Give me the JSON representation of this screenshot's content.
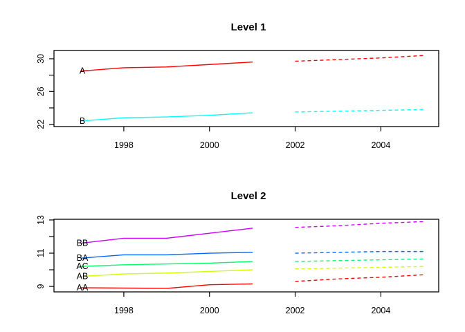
{
  "page": {
    "background_color": "#ffffff",
    "description": "Two stacked time-series line charts with solid history and dashed forecasts"
  },
  "chart_data": [
    {
      "type": "line",
      "title": "Level 1",
      "xlabel": "",
      "ylabel": "",
      "grid": false,
      "legend_position": "inline-labels-at-series-start",
      "x_actual": [
        1997,
        1998,
        1999,
        2000,
        2001
      ],
      "x_forecast": [
        2002,
        2003,
        2004,
        2005
      ],
      "xlim": [
        1996.37,
        2005.35
      ],
      "ylim": [
        21.72,
        31.01
      ],
      "xticks": [
        1998,
        2000,
        2002,
        2004
      ],
      "xtick_labels": [
        "1998",
        "2000",
        "2002",
        "2004"
      ],
      "yticks": [
        22,
        24,
        26,
        28,
        30
      ],
      "ytick_labels": [
        "22",
        "",
        "26",
        "",
        "30"
      ],
      "series": [
        {
          "name": "A",
          "color": "#FF0000",
          "actual": [
            28.5,
            28.9,
            29.0,
            29.3,
            29.6
          ],
          "forecast": [
            29.7,
            29.9,
            30.1,
            30.4
          ],
          "actual_style": "solid",
          "forecast_style": "dashed"
        },
        {
          "name": "B",
          "color": "#00FFFF",
          "actual": [
            22.4,
            22.8,
            22.9,
            23.1,
            23.4
          ],
          "forecast": [
            23.5,
            23.6,
            23.7,
            23.8
          ],
          "actual_style": "solid",
          "forecast_style": "dashed"
        }
      ]
    },
    {
      "type": "line",
      "title": "Level 2",
      "xlabel": "",
      "ylabel": "",
      "grid": false,
      "legend_position": "inline-labels-at-series-start",
      "x_actual": [
        1997,
        1998,
        1999,
        2000,
        2001
      ],
      "x_forecast": [
        2002,
        2003,
        2004,
        2005
      ],
      "xlim": [
        1996.37,
        2005.35
      ],
      "ylim": [
        8.67,
        13.04
      ],
      "xticks": [
        1998,
        2000,
        2002,
        2004
      ],
      "xtick_labels": [
        "1998",
        "2000",
        "2002",
        "2004"
      ],
      "yticks": [
        9,
        10,
        11,
        12,
        13
      ],
      "ytick_labels": [
        "9",
        "",
        "11",
        "",
        "13"
      ],
      "series": [
        {
          "name": "BB",
          "color": "#CC00FF",
          "actual": [
            11.6,
            11.9,
            11.9,
            12.2,
            12.5
          ],
          "forecast": [
            12.55,
            12.65,
            12.8,
            12.9
          ],
          "actual_style": "solid",
          "forecast_style": "dashed"
        },
        {
          "name": "BA",
          "color": "#0066FF",
          "actual": [
            10.7,
            10.9,
            10.9,
            11.0,
            11.05
          ],
          "forecast": [
            11.0,
            11.05,
            11.1,
            11.1
          ],
          "actual_style": "solid",
          "forecast_style": "dashed"
        },
        {
          "name": "AC",
          "color": "#00FF66",
          "actual": [
            10.2,
            10.3,
            10.35,
            10.4,
            10.5
          ],
          "forecast": [
            10.5,
            10.55,
            10.6,
            10.65
          ],
          "actual_style": "solid",
          "forecast_style": "dashed"
        },
        {
          "name": "AB",
          "color": "#CCFF00",
          "actual": [
            9.6,
            9.75,
            9.8,
            9.9,
            10.0
          ],
          "forecast": [
            10.05,
            10.1,
            10.15,
            10.2
          ],
          "actual_style": "solid",
          "forecast_style": "dashed"
        },
        {
          "name": "AA",
          "color": "#FF0000",
          "actual": [
            8.92,
            8.9,
            8.88,
            9.1,
            9.15
          ],
          "forecast": [
            9.3,
            9.45,
            9.55,
            9.7
          ],
          "actual_style": "solid",
          "forecast_style": "dashed"
        }
      ]
    }
  ]
}
